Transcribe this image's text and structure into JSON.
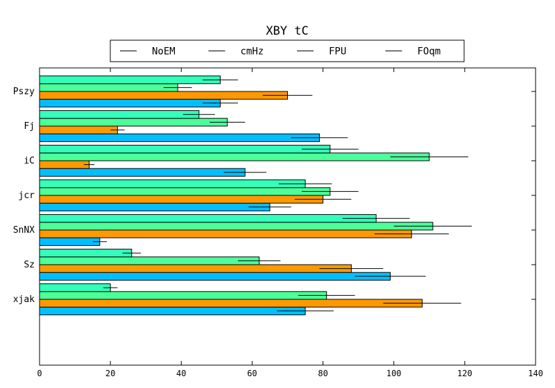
{
  "chart_data": {
    "type": "bar",
    "orientation": "horizontal",
    "title": "XBY tC",
    "xlabel": "",
    "ylabel": "",
    "xlim": [
      0,
      140
    ],
    "x_ticks": [
      0,
      20,
      40,
      60,
      80,
      100,
      120,
      140
    ],
    "categories": [
      "Pszy",
      "Fj",
      "iC",
      "jcr",
      "SnNX",
      "Sz",
      "xjak"
    ],
    "legend_position": "top-center",
    "grid": false,
    "series": [
      {
        "name": "NoEM",
        "color": "#00bfff",
        "values": [
          51,
          79,
          58,
          65,
          17,
          99,
          75
        ],
        "errors": [
          5,
          8,
          6,
          6,
          2,
          10,
          8
        ]
      },
      {
        "name": "cmHz",
        "color": "#ff9900",
        "values": [
          70,
          22,
          14,
          80,
          105,
          88,
          108
        ],
        "errors": [
          7,
          2,
          1.5,
          8,
          10.5,
          9,
          11
        ]
      },
      {
        "name": "FPU",
        "color": "#4cff9a",
        "values": [
          39,
          53,
          110,
          82,
          111,
          62,
          81
        ],
        "errors": [
          4,
          5,
          11,
          8,
          11,
          6,
          8
        ]
      },
      {
        "name": "FOqm",
        "color": "#33ffbb",
        "values": [
          51,
          45,
          82,
          75,
          95,
          26,
          20
        ],
        "errors": [
          5,
          4.5,
          8,
          7.5,
          9.5,
          2.6,
          2
        ]
      }
    ]
  }
}
